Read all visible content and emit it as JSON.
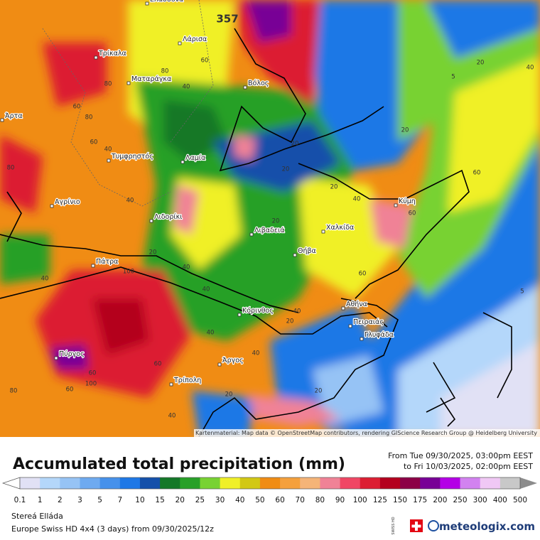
{
  "map": {
    "cities": [
      "Ελασσόνα",
      "Τρίκαλα",
      "Λάρισα",
      "Ματαράγκα",
      "Βόλος",
      "Άρτα",
      "Τυμφρηστός",
      "Λαμία",
      "Αγρίνιο",
      "Λιδορίκι",
      "Λιβαδειά",
      "Χαλκίδα",
      "Κύμη",
      "Θήβα",
      "Πάτρα",
      "Αθήνα",
      "Κόρινθος",
      "Πειραιάς",
      "Γλυφάδα",
      "Πύργος",
      "Άργος",
      "Τρίπολη"
    ],
    "contour_labels": [
      357,
      5,
      20,
      40,
      20,
      60,
      80,
      40,
      80,
      60,
      80,
      40,
      80,
      60,
      20,
      20,
      40,
      20,
      40,
      60,
      60,
      20,
      40,
      40,
      20,
      100,
      40,
      60,
      5,
      40,
      20,
      40,
      40,
      60,
      60,
      80,
      40,
      20,
      20,
      60,
      100
    ],
    "attribution": "Kartenmaterial: Map data © OpenStreetMap contributors, rendering GIScience Research Group @ Heidelberg University"
  },
  "header": {
    "title": "Accumulated total precipitation (mm)",
    "from": "From Tue 09/30/2025, 03:00pm EEST",
    "to": "to Fri 10/03/2025, 02:00pm EEST"
  },
  "legend": {
    "values": [
      0.1,
      1,
      2,
      3,
      5,
      7,
      10,
      15,
      20,
      25,
      30,
      40,
      50,
      60,
      70,
      80,
      90,
      100,
      125,
      150,
      175,
      200,
      250,
      300,
      400,
      500
    ],
    "colors": [
      "#e1e1f5",
      "#b4d7fa",
      "#96c3f5",
      "#6eaaf0",
      "#4691eb",
      "#1e78e6",
      "#1450aa",
      "#147828",
      "#28a028",
      "#78d232",
      "#f0f028",
      "#d2c814",
      "#f08c14",
      "#f5a03c",
      "#f5b478",
      "#f08296",
      "#f04664",
      "#dc1e32",
      "#b4001e",
      "#8c0046",
      "#780096",
      "#b400e6",
      "#d282f0",
      "#f0c8f5",
      "#c8c8c8"
    ]
  },
  "footer": {
    "region": "Stereá Elláda",
    "model": "Europe Swiss HD 4x4 (3 days) from 09/30/2025/12z",
    "badge": "SWISS HD",
    "brand": "meteologix.com"
  }
}
